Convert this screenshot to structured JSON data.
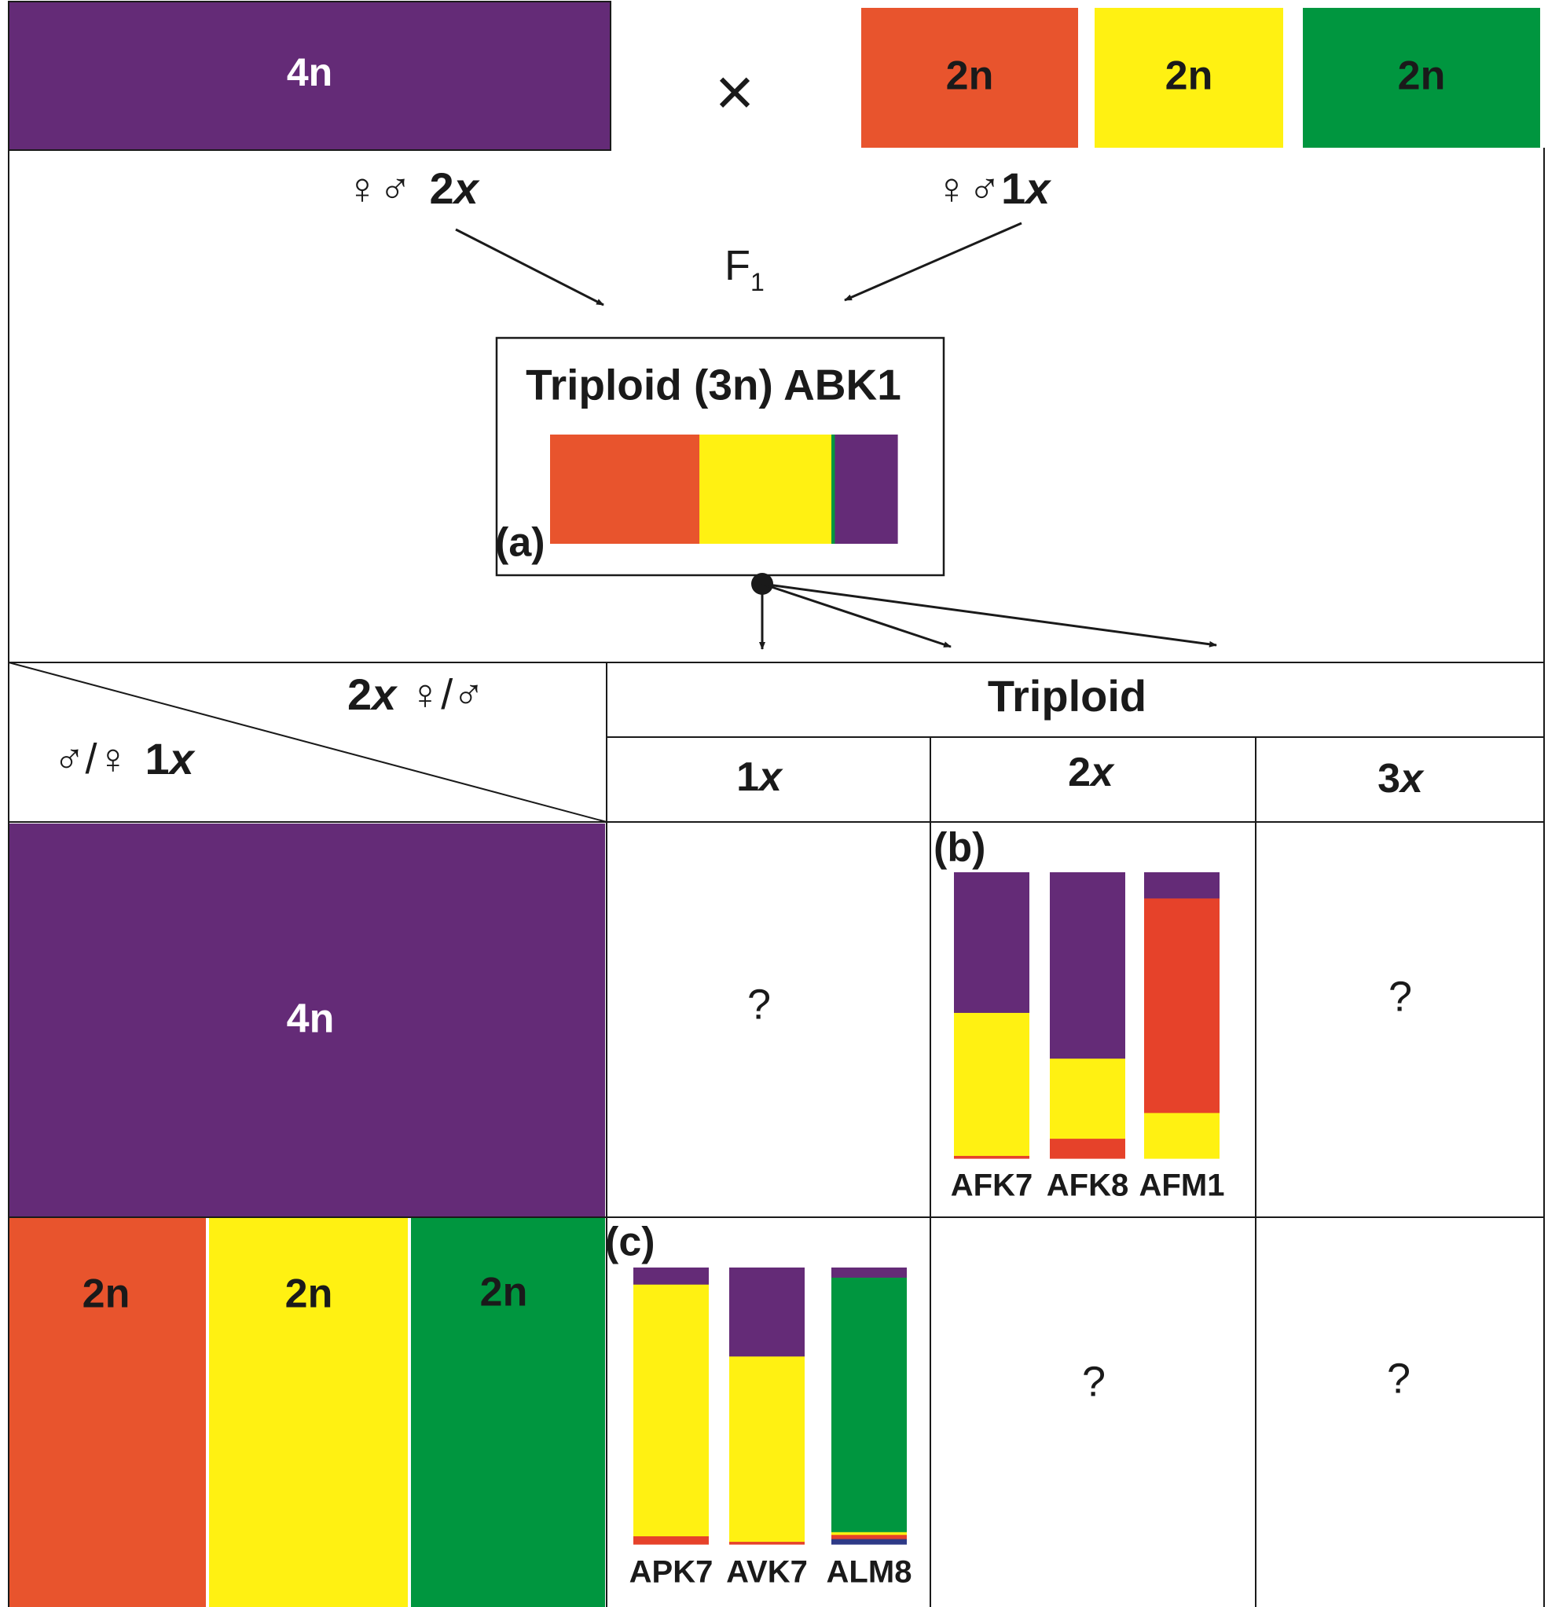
{
  "colors": {
    "purple": "#642B77",
    "orange": "#E8542D",
    "red": "#E6422A",
    "yellow": "#FFF112",
    "green": "#00963F",
    "blue": "#2E3A87",
    "ink": "#1a1a1a",
    "white": "#ffffff"
  },
  "parents": {
    "tetraploid": {
      "label": "4n",
      "color": "purple"
    },
    "diploids": [
      {
        "label": "2n",
        "color": "orange"
      },
      {
        "label": "2n",
        "color": "yellow"
      },
      {
        "label": "2n",
        "color": "green"
      }
    ],
    "cross_symbol": "×",
    "left_gamete": {
      "symbols": "♀♂",
      "dose": "2",
      "unit": "x"
    },
    "right_gamete": {
      "symbols": "♀♂",
      "dose": "1",
      "unit": "x"
    },
    "f1_label": {
      "base": "F",
      "sub": "1"
    }
  },
  "f1": {
    "title": "Triploid (3n) ABK1",
    "panel": "(a)",
    "composition": [
      {
        "color": "orange",
        "fraction": 0.43
      },
      {
        "color": "yellow",
        "fraction": 0.38
      },
      {
        "color": "green",
        "fraction": 0.01
      },
      {
        "color": "purple",
        "fraction": 0.18
      }
    ]
  },
  "table": {
    "corner": {
      "top": {
        "dose": "2",
        "unit": "x",
        "symbols": "♀/♂"
      },
      "bottom": {
        "symbols": "♂/♀",
        "dose": "1",
        "unit": "x"
      }
    },
    "header": "Triploid",
    "columns": [
      {
        "dose": "1",
        "unit": "x"
      },
      {
        "dose": "2",
        "unit": "x"
      },
      {
        "dose": "3",
        "unit": "x"
      }
    ],
    "rows": [
      {
        "label": "4n",
        "colors": [
          "purple"
        ]
      },
      {
        "labels": [
          "2n",
          "2n",
          "2n"
        ],
        "colors": [
          "orange",
          "yellow",
          "green"
        ]
      }
    ],
    "unknown": "?",
    "panel_b": {
      "panel": "(b)",
      "bars": [
        {
          "name": "AFK7",
          "segments": [
            {
              "color": "red",
              "fraction": 0.01
            },
            {
              "color": "yellow",
              "fraction": 0.5
            },
            {
              "color": "purple",
              "fraction": 0.49
            }
          ]
        },
        {
          "name": "AFK8",
          "segments": [
            {
              "color": "red",
              "fraction": 0.07
            },
            {
              "color": "yellow",
              "fraction": 0.28
            },
            {
              "color": "purple",
              "fraction": 0.65
            }
          ]
        },
        {
          "name": "AFM1",
          "segments": [
            {
              "color": "yellow",
              "fraction": 0.16
            },
            {
              "color": "red",
              "fraction": 0.75
            },
            {
              "color": "purple",
              "fraction": 0.09
            }
          ]
        }
      ]
    },
    "panel_c": {
      "panel": "(c)",
      "bars": [
        {
          "name": "APK7",
          "segments": [
            {
              "color": "red",
              "fraction": 0.03
            },
            {
              "color": "yellow",
              "fraction": 0.91
            },
            {
              "color": "purple",
              "fraction": 0.06
            }
          ]
        },
        {
          "name": "AVK7",
          "segments": [
            {
              "color": "red",
              "fraction": 0.01
            },
            {
              "color": "yellow",
              "fraction": 0.67
            },
            {
              "color": "purple",
              "fraction": 0.32
            }
          ]
        },
        {
          "name": "ALM8",
          "segments": [
            {
              "color": "blue",
              "fraction": 0.02
            },
            {
              "color": "red",
              "fraction": 0.015
            },
            {
              "color": "yellow",
              "fraction": 0.01
            },
            {
              "color": "green",
              "fraction": 0.92
            },
            {
              "color": "purple",
              "fraction": 0.035
            }
          ]
        }
      ]
    }
  }
}
